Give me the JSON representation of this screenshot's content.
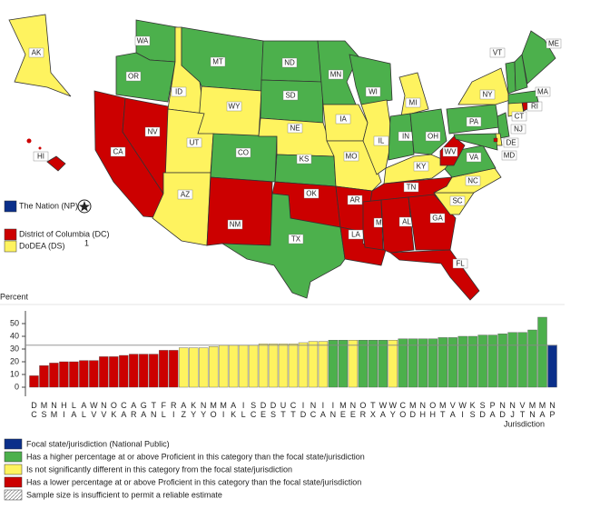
{
  "map": {
    "states": [
      {
        "label": "WA",
        "color": "#4cb04c"
      },
      {
        "label": "OR",
        "color": "#4cb04c"
      },
      {
        "label": "CA",
        "color": "#cc0000"
      },
      {
        "label": "NV",
        "color": "#cc0000"
      },
      {
        "label": "ID",
        "color": "#fef35f"
      },
      {
        "label": "MT",
        "color": "#4cb04c"
      },
      {
        "label": "WY",
        "color": "#fef35f"
      },
      {
        "label": "UT",
        "color": "#fef35f"
      },
      {
        "label": "CO",
        "color": "#4cb04c"
      },
      {
        "label": "AZ",
        "color": "#fef35f"
      },
      {
        "label": "NM",
        "color": "#cc0000"
      },
      {
        "label": "ND",
        "color": "#4cb04c"
      },
      {
        "label": "SD",
        "color": "#4cb04c"
      },
      {
        "label": "NE",
        "color": "#fef35f"
      },
      {
        "label": "KS",
        "color": "#4cb04c"
      },
      {
        "label": "OK",
        "color": "#cc0000"
      },
      {
        "label": "TX",
        "color": "#4cb04c"
      },
      {
        "label": "MN",
        "color": "#4cb04c"
      },
      {
        "label": "IA",
        "color": "#fef35f"
      },
      {
        "label": "MO",
        "color": "#fef35f"
      },
      {
        "label": "AR",
        "color": "#cc0000"
      },
      {
        "label": "LA",
        "color": "#cc0000"
      },
      {
        "label": "WI",
        "color": "#4cb04c"
      },
      {
        "label": "IL",
        "color": "#fef35f"
      },
      {
        "label": "MI",
        "color": "#fef35f"
      },
      {
        "label": "IN",
        "color": "#4cb04c"
      },
      {
        "label": "OH",
        "color": "#4cb04c"
      },
      {
        "label": "KY",
        "color": "#fef35f"
      },
      {
        "label": "TN",
        "color": "#cc0000"
      },
      {
        "label": "MS",
        "color": "#cc0000"
      },
      {
        "label": "AL",
        "color": "#cc0000"
      },
      {
        "label": "GA",
        "color": "#cc0000"
      },
      {
        "label": "FL",
        "color": "#cc0000"
      },
      {
        "label": "SC",
        "color": "#fef35f"
      },
      {
        "label": "NC",
        "color": "#fef35f"
      },
      {
        "label": "VA",
        "color": "#4cb04c"
      },
      {
        "label": "WV",
        "color": "#cc0000"
      },
      {
        "label": "PA",
        "color": "#4cb04c"
      },
      {
        "label": "NY",
        "color": "#fef35f"
      },
      {
        "label": "NJ",
        "color": "#4cb04c"
      },
      {
        "label": "DE",
        "color": "#fef35f"
      },
      {
        "label": "MD",
        "color": "#4cb04c"
      },
      {
        "label": "CT",
        "color": "#fef35f"
      },
      {
        "label": "RI",
        "color": "#cc0000"
      },
      {
        "label": "MA",
        "color": "#4cb04c"
      },
      {
        "label": "VT",
        "color": "#4cb04c"
      },
      {
        "label": "NH",
        "color": "#4cb04c"
      },
      {
        "label": "ME",
        "color": "#4cb04c"
      },
      {
        "label": "AK",
        "color": "#fef35f"
      },
      {
        "label": "HI",
        "color": "#cc0000"
      }
    ],
    "legend": [
      {
        "label": "The Nation (NP)",
        "color": "#0b2f8a"
      },
      {
        "label": "District of Columbia (DC)",
        "color": "#cc0000"
      },
      {
        "label": "DoDEA (DS)",
        "color": "#fef35f",
        "note": "1"
      }
    ]
  },
  "chart_data": {
    "type": "bar",
    "y_axis_label": "Percent",
    "x_axis_label": "Jurisdiction",
    "categories": [
      "DC",
      "MS",
      "NM",
      "HI",
      "LA",
      "AL",
      "WV",
      "NV",
      "OK",
      "CA",
      "AR",
      "GA",
      "TN",
      "FL",
      "RI",
      "AZ",
      "KY",
      "NY",
      "MO",
      "MI",
      "AK",
      "IL",
      "SC",
      "DE",
      "DS",
      "UT",
      "CT",
      "ID",
      "NC",
      "IA",
      "IN",
      "ME",
      "NE",
      "OR",
      "TX",
      "WA",
      "WY",
      "CO",
      "MD",
      "NH",
      "OH",
      "MT",
      "VA",
      "WI",
      "KS",
      "SD",
      "PA",
      "ND",
      "NJ",
      "VT",
      "MN",
      "MA",
      "NP"
    ],
    "values": [
      9,
      17,
      19,
      20,
      20,
      21,
      21,
      24,
      24,
      25,
      26,
      26,
      26,
      29,
      29,
      31,
      31,
      31,
      32,
      33,
      33,
      33,
      33,
      34,
      34,
      34,
      34,
      35,
      36,
      36,
      37,
      37,
      37,
      37,
      37,
      37,
      37,
      38,
      38,
      38,
      38,
      39,
      39,
      40,
      40,
      41,
      41,
      42,
      43,
      43,
      45,
      55,
      33
    ],
    "colors": [
      "#cc0000",
      "#cc0000",
      "#cc0000",
      "#cc0000",
      "#cc0000",
      "#cc0000",
      "#cc0000",
      "#cc0000",
      "#cc0000",
      "#cc0000",
      "#cc0000",
      "#cc0000",
      "#cc0000",
      "#cc0000",
      "#cc0000",
      "#fef35f",
      "#fef35f",
      "#fef35f",
      "#fef35f",
      "#fef35f",
      "#fef35f",
      "#fef35f",
      "#fef35f",
      "#fef35f",
      "#fef35f",
      "#fef35f",
      "#fef35f",
      "#fef35f",
      "#fef35f",
      "#fef35f",
      "#4cb04c",
      "#4cb04c",
      "#fef35f",
      "#4cb04c",
      "#4cb04c",
      "#4cb04c",
      "#fef35f",
      "#4cb04c",
      "#4cb04c",
      "#4cb04c",
      "#4cb04c",
      "#4cb04c",
      "#4cb04c",
      "#4cb04c",
      "#4cb04c",
      "#4cb04c",
      "#4cb04c",
      "#4cb04c",
      "#4cb04c",
      "#4cb04c",
      "#4cb04c",
      "#4cb04c",
      "#0b2f8a"
    ],
    "focal_category": "NP",
    "ylim": [
      0,
      60
    ],
    "yticks": [
      0,
      10,
      20,
      30,
      40,
      50
    ],
    "legend": [
      {
        "label": "Focal state/jurisdiction (National Public)",
        "color": "#0b2f8a"
      },
      {
        "label": "Has a higher percentage at or above Proficient in this category than the focal state/jurisdiction",
        "color": "#4cb04c"
      },
      {
        "label": "Is not significantly different in this category from the focal state/jurisdiction",
        "color": "#fef35f"
      },
      {
        "label": "Has a lower percentage at or above Proficient in this category than the focal state/jurisdiction",
        "color": "#cc0000"
      },
      {
        "label": "Sample size is insufficient to permit a reliable estimate",
        "color": "hatch"
      }
    ]
  }
}
